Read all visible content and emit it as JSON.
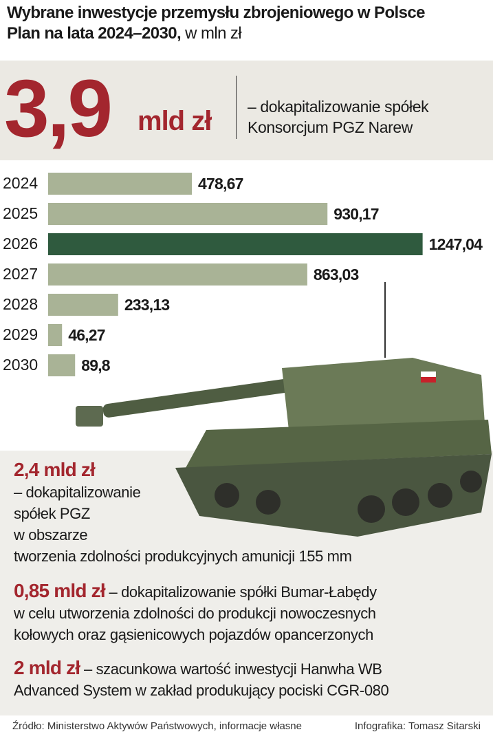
{
  "header": {
    "title": "Wybrane inwestycje przemysłu zbrojeniowego w Polsce",
    "subtitle": "Plan na lata 2024–2030,",
    "unit": "w mln zł"
  },
  "highlight": {
    "amount": "3,9",
    "unit": "mld zł",
    "lines": [
      "– dokapitalizowanie spółek",
      "Konsorcjum PGZ Narew"
    ]
  },
  "chart_data": {
    "type": "bar",
    "orientation": "horizontal",
    "categories": [
      "2024",
      "2025",
      "2026",
      "2027",
      "2028",
      "2029",
      "2030"
    ],
    "values": [
      478.67,
      930.17,
      1247.04,
      863.03,
      233.13,
      46.27,
      89.8
    ],
    "value_labels": [
      "478,67",
      "930,17",
      "1247,04",
      "863,03",
      "233,13",
      "46,27",
      "89,8"
    ],
    "colors": [
      "#a9b396",
      "#a9b396",
      "#2f5a3e",
      "#a9b396",
      "#a9b396",
      "#a9b396",
      "#a9b396"
    ],
    "xlim": [
      0,
      1470
    ]
  },
  "notes": [
    {
      "amount": "2,4 mld zł",
      "lines": [
        "– dokapitalizowanie",
        "spółek PGZ",
        "w obszarze",
        "tworzenia zdolności produkcyjnych amunicji 155 mm"
      ]
    },
    {
      "amount": "0,85 mld zł",
      "lines": [
        "– dokapitalizowanie spółki Bumar-Łabędy",
        "w celu utworzenia zdolności do produkcji nowoczesnych",
        "kołowych oraz gąsienicowych pojazdów opancerzonych"
      ]
    },
    {
      "amount": "2 mld zł",
      "lines": [
        "– szacunkowa wartość inwestycji Hanwha WB",
        "Advanced System w zakład produkujący pociski CGR-080"
      ]
    }
  ],
  "footer": {
    "source": "Źródło: Ministerstwo Aktywów Państwowych, informacje własne",
    "author": "Infografika: Tomasz Sitarski"
  }
}
